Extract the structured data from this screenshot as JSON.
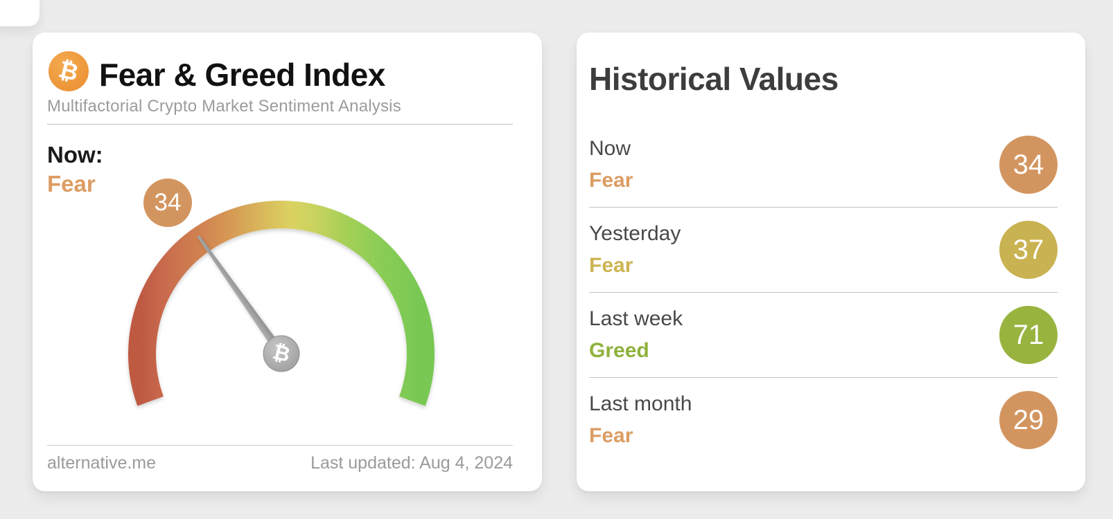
{
  "page": {
    "background": "#ececec"
  },
  "chart_data": {
    "type": "gauge",
    "title": "Fear & Greed Index",
    "value": 34,
    "min": 0,
    "max": 100,
    "sentiment": "Fear",
    "arc_span_degrees": 220,
    "arc_colors_low_to_high": [
      "#bf5a43",
      "#d08050",
      "#d9bd5c",
      "#dbd162",
      "#a8d058",
      "#78c853"
    ],
    "historical": [
      {
        "period": "Now",
        "sentiment": "Fear",
        "value": 34
      },
      {
        "period": "Yesterday",
        "sentiment": "Fear",
        "value": 37
      },
      {
        "period": "Last week",
        "sentiment": "Greed",
        "value": 71
      },
      {
        "period": "Last month",
        "sentiment": "Fear",
        "value": 29
      }
    ]
  },
  "gauge_card": {
    "bitcoin_symbol": "₿",
    "title": "Fear & Greed Index",
    "subtitle": "Multifactorial Crypto Market Sentiment Analysis",
    "now_label": "Now:",
    "now_sentiment": "Fear",
    "now_value": "34",
    "sentiment_color": "#dc9c62",
    "value_badge_color": "#d3955f",
    "source": "alternative.me",
    "last_updated": "Last updated: Aug 4, 2024"
  },
  "historical_card": {
    "title": "Historical Values",
    "rows": [
      {
        "label": "Now",
        "sentiment": "Fear",
        "value": "34",
        "text_color": "#dc9c62",
        "badge_color": "#d3955f"
      },
      {
        "label": "Yesterday",
        "sentiment": "Fear",
        "value": "37",
        "text_color": "#cdb452",
        "badge_color": "#c9b251"
      },
      {
        "label": "Last week",
        "sentiment": "Greed",
        "value": "71",
        "text_color": "#8fb23c",
        "badge_color": "#98b43f"
      },
      {
        "label": "Last month",
        "sentiment": "Fear",
        "value": "29",
        "text_color": "#dc9c62",
        "badge_color": "#d3955f"
      }
    ]
  }
}
